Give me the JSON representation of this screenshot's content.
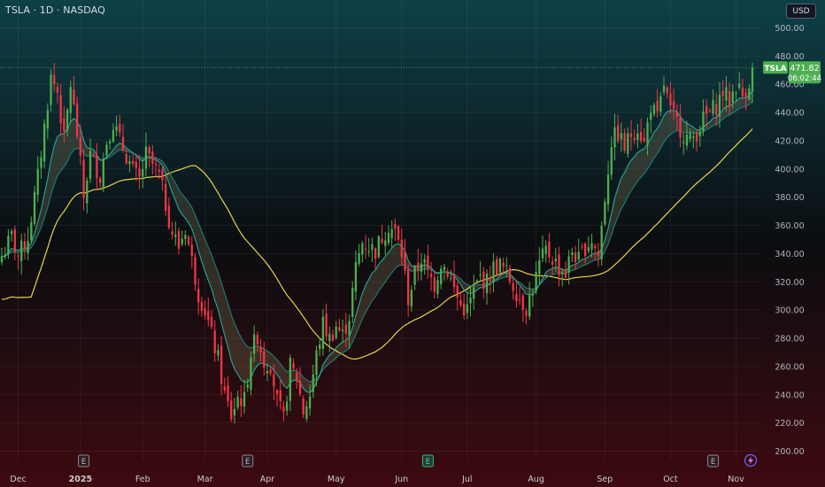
{
  "header": {
    "title": "TSLA · 1D · NASDAQ"
  },
  "price_scale": {
    "currency": "USD"
  },
  "last_price": {
    "ticker": "TSLA",
    "price": "471.82",
    "countdown": "06:02:44",
    "color": "#4caf50"
  },
  "event_markers": [
    {
      "label": "E",
      "after_index": 25,
      "highlight": false
    },
    {
      "label": "E",
      "after_index": 75,
      "highlight": false
    },
    {
      "label": "E",
      "after_index": 130,
      "highlight": true
    },
    {
      "label": "E",
      "after_index": 217,
      "highlight": false
    }
  ],
  "colors": {
    "up": "#4caf50",
    "down": "#f23645",
    "ema_fast": "#26a69a",
    "ema_slow": "#1f7d76",
    "sma": "#e5d34a"
  },
  "chart_data": {
    "type": "candlestick",
    "title": "TSLA · 1D · NASDAQ",
    "ylim": [
      190,
      510
    ],
    "y_ticks": [
      200,
      220,
      240,
      260,
      280,
      300,
      320,
      340,
      360,
      380,
      400,
      420,
      440,
      460,
      480,
      500
    ],
    "y_tick_labels": [
      "200.00",
      "220.00",
      "240.00",
      "260.00",
      "280.00",
      "300.00",
      "320.00",
      "340.00",
      "360.00",
      "380.00",
      "400.00",
      "420.00",
      "440.00",
      "460.00",
      "480.00",
      "500.00"
    ],
    "x_tick_labels": [
      {
        "label": "Dec",
        "index": 5,
        "bold": false
      },
      {
        "label": "2025",
        "index": 24,
        "bold": true
      },
      {
        "label": "Feb",
        "index": 43,
        "bold": false
      },
      {
        "label": "Mar",
        "index": 62,
        "bold": false
      },
      {
        "label": "Apr",
        "index": 81,
        "bold": false
      },
      {
        "label": "May",
        "index": 102,
        "bold": false
      },
      {
        "label": "Jun",
        "index": 122,
        "bold": false
      },
      {
        "label": "Jul",
        "index": 142,
        "bold": false
      },
      {
        "label": "Aug",
        "index": 163,
        "bold": false
      },
      {
        "label": "Sep",
        "index": 184,
        "bold": false
      },
      {
        "label": "Oct",
        "index": 204,
        "bold": false
      },
      {
        "label": "Nov",
        "index": 224,
        "bold": false
      }
    ],
    "num_bars": 230,
    "last_price": 471.82,
    "key_closes": [
      [
        0,
        338
      ],
      [
        3,
        352
      ],
      [
        5,
        338
      ],
      [
        8,
        352
      ],
      [
        11,
        394
      ],
      [
        13,
        430
      ],
      [
        15,
        465
      ],
      [
        17,
        455
      ],
      [
        19,
        420
      ],
      [
        21,
        460
      ],
      [
        23,
        425
      ],
      [
        25,
        380
      ],
      [
        27,
        410
      ],
      [
        30,
        395
      ],
      [
        32,
        420
      ],
      [
        34,
        433
      ],
      [
        36,
        420
      ],
      [
        38,
        410
      ],
      [
        40,
        398
      ],
      [
        42,
        392
      ],
      [
        44,
        410
      ],
      [
        46,
        403
      ],
      [
        48,
        395
      ],
      [
        50,
        375
      ],
      [
        52,
        355
      ],
      [
        54,
        345
      ],
      [
        56,
        358
      ],
      [
        58,
        335
      ],
      [
        60,
        312
      ],
      [
        62,
        300
      ],
      [
        64,
        282
      ],
      [
        66,
        265
      ],
      [
        68,
        240
      ],
      [
        70,
        225
      ],
      [
        72,
        238
      ],
      [
        74,
        236
      ],
      [
        76,
        270
      ],
      [
        78,
        282
      ],
      [
        80,
        263
      ],
      [
        82,
        262
      ],
      [
        84,
        235
      ],
      [
        86,
        222
      ],
      [
        88,
        260
      ],
      [
        90,
        252
      ],
      [
        92,
        228
      ],
      [
        94,
        240
      ],
      [
        96,
        268
      ],
      [
        98,
        290
      ],
      [
        100,
        280
      ],
      [
        102,
        289
      ],
      [
        104,
        282
      ],
      [
        106,
        296
      ],
      [
        108,
        330
      ],
      [
        110,
        348
      ],
      [
        112,
        345
      ],
      [
        114,
        342
      ],
      [
        116,
        352
      ],
      [
        118,
        360
      ],
      [
        120,
        355
      ],
      [
        122,
        340
      ],
      [
        124,
        308
      ],
      [
        126,
        325
      ],
      [
        128,
        337
      ],
      [
        130,
        326
      ],
      [
        132,
        318
      ],
      [
        134,
        334
      ],
      [
        136,
        328
      ],
      [
        138,
        315
      ],
      [
        140,
        303
      ],
      [
        142,
        300
      ],
      [
        144,
        313
      ],
      [
        146,
        323
      ],
      [
        148,
        320
      ],
      [
        150,
        330
      ],
      [
        152,
        332
      ],
      [
        154,
        326
      ],
      [
        156,
        318
      ],
      [
        158,
        308
      ],
      [
        160,
        302
      ],
      [
        162,
        315
      ],
      [
        164,
        332
      ],
      [
        166,
        342
      ],
      [
        168,
        337
      ],
      [
        170,
        330
      ],
      [
        172,
        326
      ],
      [
        174,
        342
      ],
      [
        176,
        335
      ],
      [
        178,
        345
      ],
      [
        180,
        350
      ],
      [
        182,
        338
      ],
      [
        184,
        380
      ],
      [
        186,
        420
      ],
      [
        188,
        425
      ],
      [
        190,
        415
      ],
      [
        192,
        425
      ],
      [
        194,
        430
      ],
      [
        196,
        418
      ],
      [
        198,
        445
      ],
      [
        200,
        435
      ],
      [
        202,
        460
      ],
      [
        204,
        440
      ],
      [
        206,
        433
      ],
      [
        208,
        425
      ],
      [
        210,
        420
      ],
      [
        212,
        426
      ],
      [
        214,
        435
      ],
      [
        216,
        440
      ],
      [
        218,
        445
      ],
      [
        220,
        455
      ],
      [
        222,
        448
      ],
      [
        224,
        460
      ],
      [
        226,
        452
      ],
      [
        228,
        462
      ],
      [
        229,
        471.82
      ]
    ],
    "series": [
      {
        "name": "EMA fast",
        "kind": "ema",
        "period": 10
      },
      {
        "name": "EMA slow",
        "kind": "ema",
        "period": 20
      },
      {
        "name": "SMA",
        "kind": "sma",
        "period": 50
      }
    ]
  }
}
